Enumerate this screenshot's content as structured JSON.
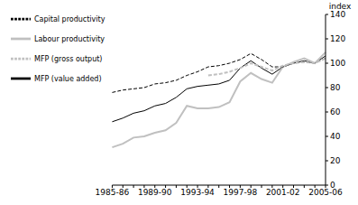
{
  "chart_data": {
    "type": "line",
    "y_label": "index",
    "categories": [
      "1985-86",
      null,
      null,
      null,
      "1989-90",
      null,
      null,
      null,
      "1993-94",
      null,
      null,
      null,
      "1997-98",
      null,
      null,
      null,
      "2001-02",
      null,
      null,
      null,
      "2005-06"
    ],
    "series": [
      {
        "name": "MFP (value added)",
        "color": "#000000",
        "line_style": "solid",
        "values": [
          52,
          55,
          59,
          61,
          65,
          67,
          72,
          79,
          81,
          82,
          83,
          86,
          96,
          102,
          96,
          91,
          97,
          100,
          102,
          100,
          106
        ]
      },
      {
        "name": "Labour productivity",
        "color": "#c0c0c0",
        "line_style": "solid",
        "values": [
          31,
          34,
          39,
          40,
          43,
          45,
          51,
          65,
          63,
          63,
          64,
          68,
          85,
          92,
          87,
          84,
          97,
          101,
          104,
          100,
          109
        ]
      },
      {
        "name": "Capital productivity",
        "color": "#000000",
        "line_style": "dashed",
        "values": [
          76,
          78,
          79,
          80,
          83,
          84,
          86,
          90,
          93,
          97,
          98,
          100,
          103,
          108,
          103,
          97,
          97,
          100,
          101,
          100,
          104
        ]
      },
      {
        "name": "MFP (gross output)",
        "color": "#c0c0c0",
        "line_style": "dashed",
        "values": [
          null,
          null,
          null,
          null,
          null,
          null,
          null,
          null,
          null,
          90,
          91,
          93,
          96,
          100,
          97,
          94,
          98,
          100,
          101,
          100,
          104
        ]
      }
    ],
    "ylim": [
      0,
      140
    ],
    "yticks": [
      0,
      20,
      40,
      60,
      80,
      100,
      120,
      140
    ],
    "grid": false,
    "legend": "top-left"
  }
}
